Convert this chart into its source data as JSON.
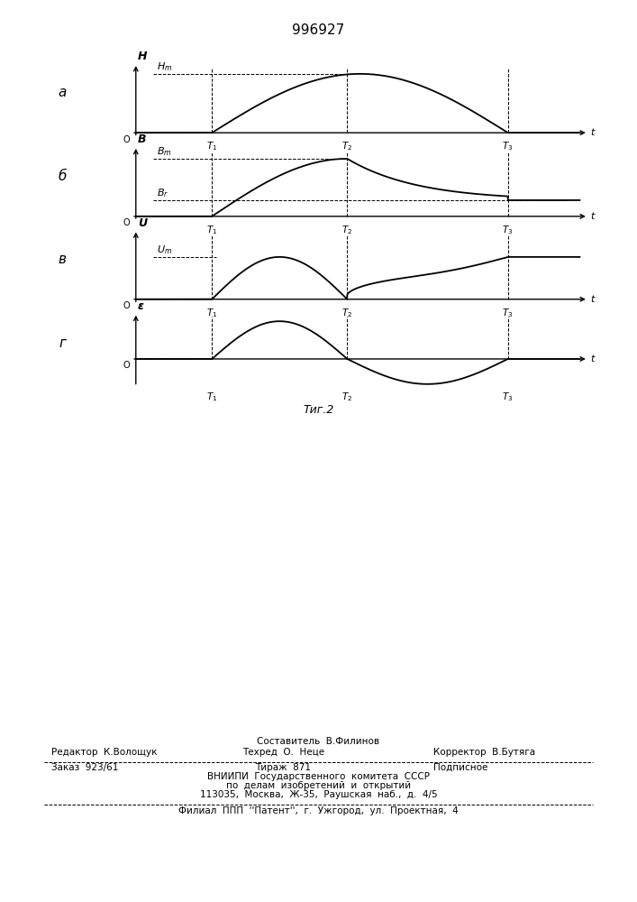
{
  "title": "996927",
  "fig_caption": "Τиг.2",
  "panel_labels": [
    "a",
    "б",
    "в",
    "г"
  ],
  "y_axis_labels": [
    "H",
    "B",
    "U",
    "ε"
  ],
  "x_label": "t",
  "t1": 0.18,
  "t2": 0.5,
  "t3": 0.88,
  "curve_color": "#000000",
  "background_color": "#ffffff",
  "bottom_text": {
    "sestavitel": "Составитель  В.Филинов",
    "redaktor": "Редактор  К.Волощук",
    "tehred": "Техред  О.  Неце",
    "korrektor": "Корректор  В.Бутяга",
    "zakaz": "Заказ  923/61",
    "tirazh": "Тираж  871",
    "podpisnoe": "Подписное",
    "vniipи": "ВНИИПИ  Государственного  комитета  СССР",
    "dela": "по  делам  изобретений  и  открытий",
    "address": "113035,  Москва,  Ж-35,  Раушская  наб.,  д.  4/5",
    "filial": "Филиал  ППП  ''Патент'',  г.  Ужгород,  ул.  Проектная,  4"
  }
}
